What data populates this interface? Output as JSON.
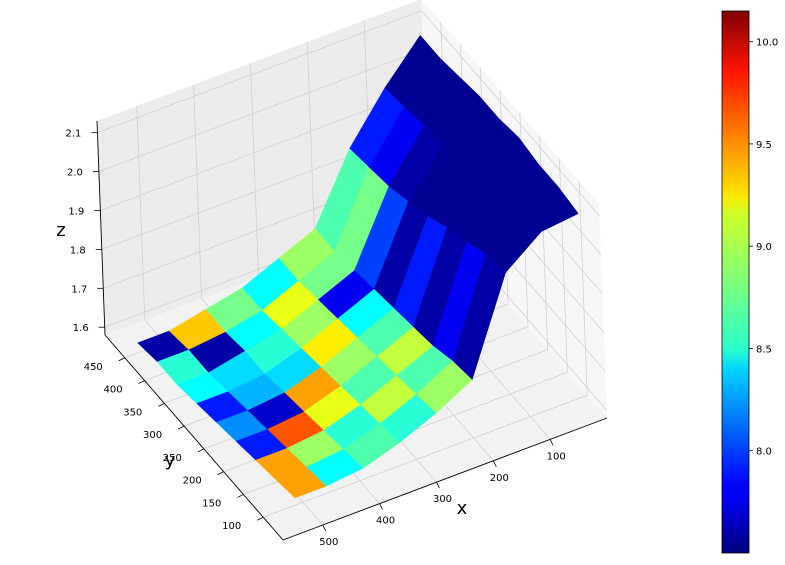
{
  "chart_data": {
    "type": "surface3d",
    "colormap": "jet",
    "xlabel": "x",
    "ylabel": "y",
    "zlabel": "z",
    "x_ticks": [
      "100",
      "200",
      "300",
      "400",
      "500"
    ],
    "y_ticks": [
      "100",
      "150",
      "200",
      "250",
      "300",
      "350",
      "400",
      "450"
    ],
    "z_ticks": [
      "1.6",
      "1.7",
      "1.8",
      "1.9",
      "2.0",
      "2.1"
    ],
    "zlim": [
      1.58,
      2.13
    ],
    "colorbar": {
      "range": [
        7.5,
        10.15
      ],
      "ticks": [
        "8.0",
        "8.5",
        "9.0",
        "9.5",
        "10.0"
      ]
    },
    "grid": true,
    "x_nodes": [
      30,
      95,
      160,
      225,
      290,
      355,
      420,
      485,
      540
    ],
    "y_nodes": [
      60,
      110,
      160,
      210,
      260,
      310,
      360,
      410,
      460
    ],
    "z_surface": [
      [
        2.11,
        2.1,
        2.03,
        1.79,
        1.74,
        1.7,
        1.67,
        1.66,
        1.66
      ],
      [
        2.12,
        2.09,
        2.02,
        1.78,
        1.73,
        1.69,
        1.66,
        1.65,
        1.65
      ],
      [
        2.12,
        2.08,
        1.99,
        1.76,
        1.72,
        1.68,
        1.65,
        1.64,
        1.64
      ],
      [
        2.13,
        2.07,
        1.97,
        1.75,
        1.71,
        1.67,
        1.64,
        1.63,
        1.63
      ],
      [
        2.12,
        2.05,
        1.94,
        1.74,
        1.7,
        1.66,
        1.63,
        1.62,
        1.62
      ],
      [
        2.12,
        2.03,
        1.92,
        1.73,
        1.69,
        1.65,
        1.62,
        1.61,
        1.61
      ],
      [
        2.11,
        2.02,
        1.9,
        1.72,
        1.68,
        1.64,
        1.62,
        1.6,
        1.6
      ],
      [
        2.1,
        2.01,
        1.89,
        1.71,
        1.67,
        1.63,
        1.61,
        1.6,
        1.6
      ],
      [
        2.1,
        2.0,
        1.88,
        1.71,
        1.67,
        1.63,
        1.61,
        1.59,
        1.59
      ]
    ],
    "color_values": [
      [
        7.55,
        7.55,
        7.6,
        8.9,
        8.6,
        8.7,
        8.5,
        9.4,
        null
      ],
      [
        7.55,
        7.55,
        7.8,
        8.7,
        9.0,
        8.6,
        8.9,
        9.4,
        null
      ],
      [
        7.55,
        7.55,
        7.6,
        9.0,
        8.7,
        9.1,
        9.6,
        7.9,
        null
      ],
      [
        7.55,
        7.55,
        7.9,
        8.7,
        8.9,
        9.4,
        7.7,
        8.2,
        null
      ],
      [
        7.55,
        7.55,
        7.6,
        8.5,
        9.2,
        8.4,
        8.3,
        7.9,
        null
      ],
      [
        7.55,
        7.6,
        8.0,
        7.8,
        8.9,
        8.6,
        8.4,
        8.5,
        null
      ],
      [
        7.55,
        7.8,
        8.8,
        8.8,
        9.1,
        8.5,
        7.6,
        8.6,
        null
      ],
      [
        7.55,
        7.9,
        8.7,
        8.9,
        8.5,
        8.8,
        9.3,
        7.6,
        null
      ],
      [
        null,
        null,
        null,
        null,
        null,
        null,
        null,
        null,
        null
      ]
    ]
  }
}
